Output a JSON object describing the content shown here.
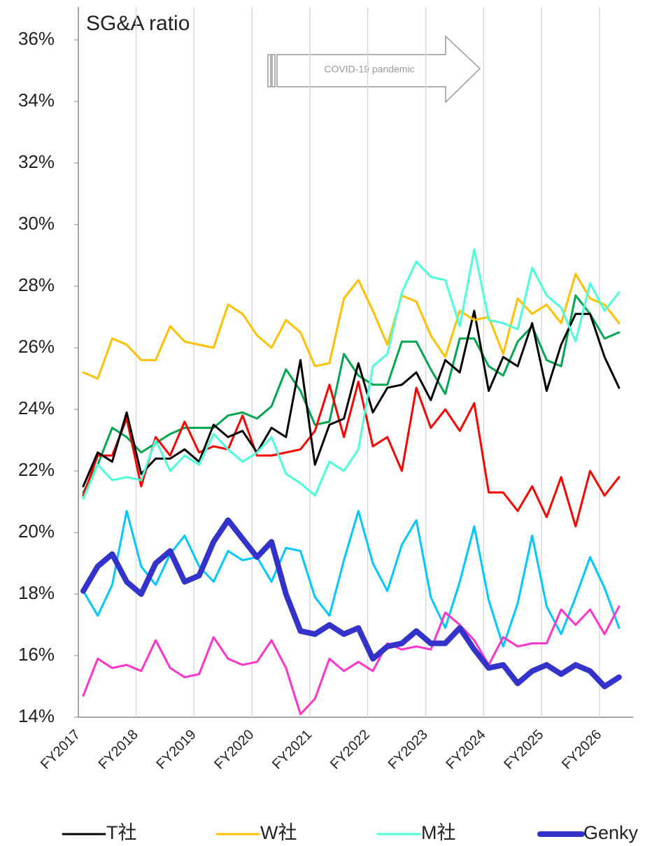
{
  "chart_data": {
    "type": "line",
    "title": "SG&A ratio",
    "annotation": "COVID-19 pandemic",
    "categories": [
      "FY2017",
      null,
      null,
      null,
      "FY2018",
      null,
      null,
      null,
      "FY2019",
      null,
      null,
      null,
      "FY2020",
      null,
      null,
      null,
      "FY2021",
      null,
      null,
      null,
      "FY2022",
      null,
      null,
      null,
      "FY2023",
      null,
      null,
      null,
      "FY2024",
      null,
      null,
      null,
      "FY2025",
      null,
      null,
      null,
      "FY2026",
      null
    ],
    "ylim": [
      14,
      36
    ],
    "yticks": [
      {
        "value": 14,
        "label": "14%"
      },
      {
        "value": 16,
        "label": "16%"
      },
      {
        "value": 18,
        "label": "18%"
      },
      {
        "value": 20,
        "label": "20%"
      },
      {
        "value": 22,
        "label": "22%"
      },
      {
        "value": 24,
        "label": "24%"
      },
      {
        "value": 26,
        "label": "26%"
      },
      {
        "value": 28,
        "label": "28%"
      },
      {
        "value": 30,
        "label": "30%"
      },
      {
        "value": 32,
        "label": "32%"
      },
      {
        "value": 34,
        "label": "34%"
      },
      {
        "value": 36,
        "label": "36%"
      }
    ],
    "grid": "x",
    "legend": "bottom",
    "series": [
      {
        "color": "#00a650",
        "width": 3,
        "values": [
          21.3,
          22.2,
          23.4,
          23.1,
          22.6,
          22.9,
          23.2,
          23.4,
          23.4,
          23.4,
          23.8,
          23.9,
          23.7,
          24.1,
          25.3,
          24.6,
          23.5,
          23.6,
          25.8,
          25.1,
          24.8,
          24.8,
          26.2,
          26.2,
          25.3,
          24.5,
          26.3,
          26.3,
          25.4,
          25.1,
          26.2,
          26.7,
          25.6,
          25.4,
          27.7,
          27.1,
          26.3,
          26.5
        ]
      },
      {
        "color": "#ff0000",
        "width": 3,
        "values": [
          21.2,
          22.5,
          22.5,
          23.7,
          21.5,
          23.1,
          22.5,
          23.6,
          22.6,
          22.8,
          22.7,
          23.8,
          22.5,
          22.5,
          22.6,
          22.7,
          23.3,
          24.8,
          23.1,
          24.9,
          22.8,
          23.1,
          22.0,
          24.7,
          23.4,
          24.0,
          23.3,
          24.2,
          21.3,
          21.3,
          20.7,
          21.5,
          20.5,
          21.8,
          20.2,
          22.0,
          21.2,
          21.8
        ]
      },
      {
        "color": "#00c8ff",
        "width": 3,
        "values": [
          18.1,
          17.3,
          18.3,
          20.7,
          18.9,
          18.3,
          19.3,
          19.9,
          18.9,
          18.4,
          19.4,
          19.1,
          19.2,
          18.4,
          19.5,
          19.4,
          17.9,
          17.3,
          19.1,
          20.7,
          19.0,
          18.1,
          19.6,
          20.4,
          17.9,
          16.9,
          18.4,
          20.2,
          17.8,
          16.3,
          17.7,
          19.9,
          17.6,
          16.7,
          17.9,
          19.2,
          18.2,
          16.9
        ]
      },
      {
        "color": "#ff33cc",
        "width": 3,
        "values": [
          14.7,
          15.9,
          15.6,
          15.7,
          15.5,
          16.5,
          15.6,
          15.3,
          15.4,
          16.6,
          15.9,
          15.7,
          15.8,
          16.5,
          15.6,
          14.1,
          14.6,
          15.9,
          15.5,
          15.8,
          15.5,
          16.4,
          16.2,
          16.3,
          16.2,
          17.4,
          17.0,
          16.5,
          15.7,
          16.6,
          16.3,
          16.4,
          16.4,
          17.5,
          17.0,
          17.5,
          16.7,
          17.6
        ]
      },
      {
        "name": "T社",
        "color": "#000000",
        "width": 3,
        "values": [
          21.5,
          22.6,
          22.3,
          23.9,
          21.9,
          22.4,
          22.4,
          22.7,
          22.3,
          23.5,
          23.1,
          23.3,
          22.6,
          23.4,
          23.1,
          25.6,
          22.2,
          23.5,
          23.7,
          25.5,
          23.9,
          24.7,
          24.8,
          25.2,
          24.3,
          25.6,
          25.2,
          27.2,
          24.6,
          25.7,
          25.4,
          26.8,
          24.6,
          26.1,
          27.1,
          27.1,
          25.7,
          24.7
        ]
      },
      {
        "name": "W社",
        "color": "#ffc000",
        "width": 3,
        "values": [
          25.2,
          25.0,
          26.3,
          26.1,
          25.6,
          25.6,
          26.7,
          26.2,
          26.1,
          26.0,
          27.4,
          27.1,
          26.4,
          26.0,
          26.9,
          26.5,
          25.4,
          25.5,
          27.6,
          28.2,
          27.2,
          26.1,
          27.7,
          27.5,
          26.4,
          25.7,
          27.2,
          26.9,
          27.0,
          25.8,
          27.6,
          27.1,
          27.4,
          26.8,
          28.4,
          27.6,
          27.4,
          26.8
        ]
      },
      {
        "name": "M社",
        "color": "#4dffd8",
        "width": 3,
        "values": [
          21.1,
          22.2,
          21.7,
          21.8,
          21.7,
          23.0,
          22.0,
          22.5,
          22.2,
          23.2,
          22.7,
          22.3,
          22.6,
          23.1,
          21.9,
          21.6,
          21.2,
          22.3,
          22.0,
          22.7,
          25.4,
          25.8,
          27.8,
          28.8,
          28.3,
          28.2,
          26.7,
          29.2,
          26.9,
          26.8,
          26.6,
          28.6,
          27.7,
          27.3,
          26.2,
          28.1,
          27.2,
          27.8
        ]
      },
      {
        "name": "Genky",
        "color": "#3333cc",
        "width": 8,
        "values": [
          18.1,
          18.9,
          19.3,
          18.4,
          18.0,
          19.0,
          19.4,
          18.4,
          18.6,
          19.7,
          20.4,
          19.8,
          19.2,
          19.7,
          18.0,
          16.8,
          16.7,
          17.0,
          16.7,
          16.9,
          15.9,
          16.3,
          16.4,
          16.8,
          16.4,
          16.4,
          16.9,
          16.2,
          15.6,
          15.7,
          15.1,
          15.5,
          15.7,
          15.4,
          15.7,
          15.5,
          15.0,
          15.3
        ]
      }
    ]
  }
}
